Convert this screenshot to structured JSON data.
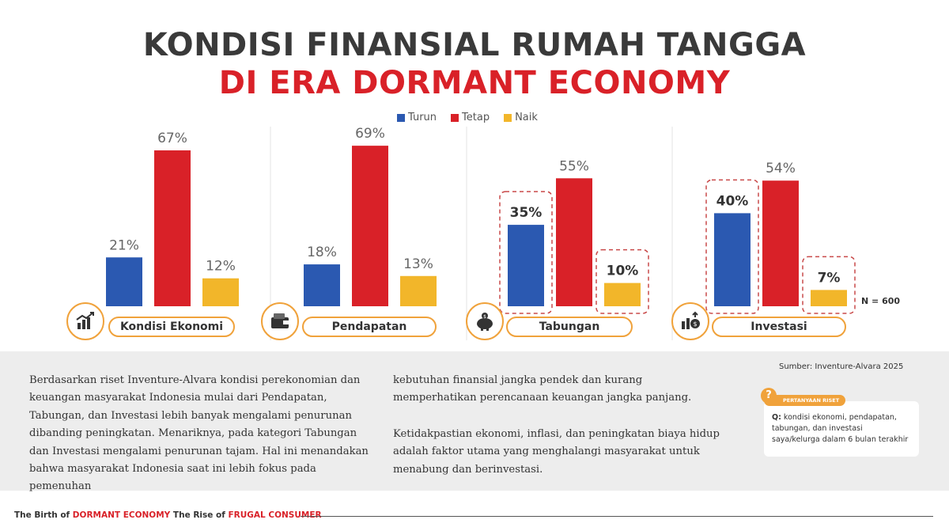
{
  "title": {
    "line1": "KONDISI FINANSIAL RUMAH TANGGA",
    "line2": "DI ERA DORMANT ECONOMY"
  },
  "chart_data": {
    "type": "bar",
    "title": "KONDISI FINANSIAL RUMAH TANGGA DI ERA DORMANT ECONOMY",
    "categories": [
      "Kondisi Ekonomi",
      "Pendapatan",
      "Tabungan",
      "Investasi"
    ],
    "series": [
      {
        "name": "Turun",
        "color": "#2b59b1",
        "values": [
          21,
          18,
          35,
          40
        ]
      },
      {
        "name": "Tetap",
        "color": "#d92128",
        "values": [
          67,
          69,
          55,
          54
        ]
      },
      {
        "name": "Naik",
        "color": "#f2b62a",
        "values": [
          12,
          13,
          10,
          7
        ]
      }
    ],
    "value_labels": [
      [
        "21%",
        "67%",
        "12%"
      ],
      [
        "18%",
        "69%",
        "13%"
      ],
      [
        "35%",
        "55%",
        "10%"
      ],
      [
        "40%",
        "54%",
        "7%"
      ]
    ],
    "highlighted": [
      [],
      [],
      [
        0,
        2
      ],
      [
        0,
        2
      ]
    ],
    "ylim": [
      0,
      100
    ],
    "legend_position": "top-center",
    "icons": [
      "chart-growth-icon",
      "wallet-icon",
      "piggy-bank-icon",
      "investment-icon"
    ],
    "sample_note": "N = 600"
  },
  "source": "Sumber: Inventure-Alvara 2025",
  "body": {
    "paragraph_left": "Berdasarkan riset Inventure-Alvara kondisi perekonomian dan keuangan masyarakat Indonesia mulai dari Pendapatan, Tabungan, dan Investasi lebih banyak mengalami penurunan dibanding peningkatan. Menariknya, pada kategori Tabungan dan Investasi mengalami penurunan tajam. Hal ini menandakan bahwa masyarakat Indonesia saat ini lebih fokus pada pemenuhan",
    "paragraph_right_1": "kebutuhan finansial jangka pendek dan kurang memperhatikan perencanaan keuangan jangka panjang.",
    "paragraph_right_2": "Ketidakpastian ekonomi, inflasi, dan peningkatan biaya hidup adalah faktor utama yang menghalangi masyarakat untuk menabung dan berinvestasi."
  },
  "question": {
    "badge": "PERTANYAAN RISET",
    "mark": "?",
    "prefix": "Q:",
    "text": "kondisi ekonomi, pendapatan, tabungan, dan investasi saya/kelurga dalam 6 bulan terakhir"
  },
  "footer": {
    "part1": "The Birth of ",
    "part2": "DORMANT ECONOMY",
    "part3": " The Rise of ",
    "part4": "FRUGAL CONSUMER"
  },
  "colors": {
    "accent_orange": "#f0a23b",
    "brand_red": "#d92128",
    "blue": "#2b59b1",
    "yellow": "#f2b62a",
    "band_gray": "#ededed"
  }
}
